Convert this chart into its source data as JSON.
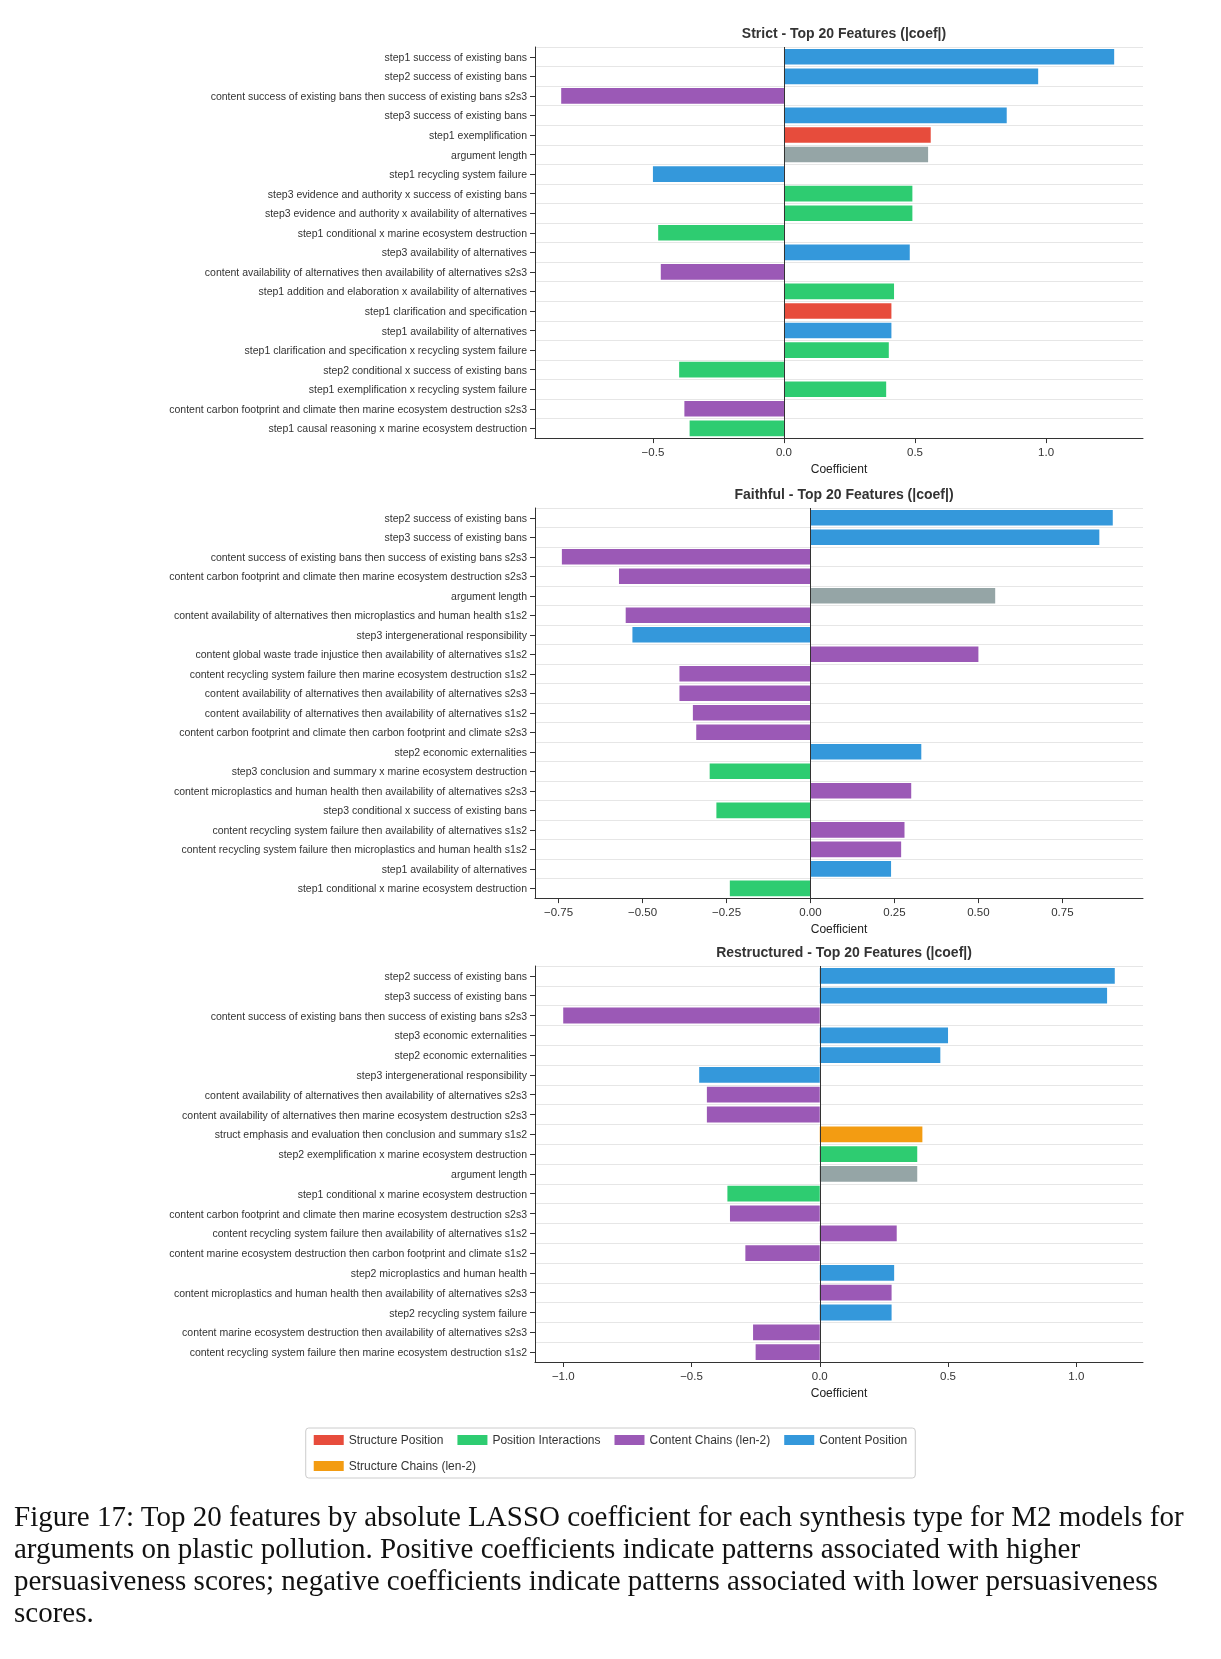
{
  "chart_data": [
    {
      "type": "bar",
      "orientation": "horizontal",
      "title": "Strict - Top 20 Features (|coef|)",
      "xlabel": "Coefficient",
      "categories": [
        "step1 success of existing bans",
        "step2 success of existing bans",
        "content success of existing bans then success of existing bans s2s3",
        "step3 success of existing bans",
        "step1 exemplification",
        "argument length",
        "step1 recycling system failure",
        "step3 evidence and authority x success of existing bans",
        "step3 evidence and authority x availability of alternatives",
        "step1 conditional x marine ecosystem destruction",
        "step3 availability of alternatives",
        "content availability of alternatives then availability of alternatives s2s3",
        "step1 addition and elaboration x availability of alternatives",
        "step1 clarification and specification",
        "step1 availability of alternatives",
        "step1 clarification and specification x recycling system failure",
        "step2 conditional x success of existing bans",
        "step1 exemplification x recycling system failure",
        "content carbon footprint and climate then marine ecosystem destruction s2s3",
        "step1 causal reasoning x marine ecosystem destruction"
      ],
      "series": [
        {
          "color": "#e74c3c",
          "values": [
            null,
            null,
            null,
            null,
            0.56,
            null,
            null,
            null,
            null,
            null,
            null,
            null,
            null,
            0.41,
            null,
            null,
            null,
            null,
            null,
            null
          ]
        },
        {
          "color": "#3498db",
          "values": [
            1.26,
            0.97,
            null,
            0.85,
            null,
            null,
            -0.5,
            null,
            null,
            null,
            0.48,
            null,
            null,
            null,
            0.41,
            null,
            null,
            null,
            null,
            null
          ]
        },
        {
          "color": "#2ecc71",
          "values": [
            null,
            null,
            null,
            null,
            null,
            null,
            null,
            0.49,
            0.49,
            -0.48,
            null,
            null,
            0.42,
            null,
            null,
            0.4,
            -0.4,
            0.39,
            null,
            -0.36
          ]
        },
        {
          "color": "#9b59b6",
          "values": [
            null,
            null,
            -0.85,
            null,
            null,
            null,
            null,
            null,
            null,
            null,
            null,
            -0.47,
            null,
            null,
            null,
            null,
            null,
            null,
            -0.38,
            null
          ]
        },
        {
          "color": "#95a5a6",
          "values": [
            null,
            null,
            null,
            null,
            null,
            0.55,
            null,
            null,
            null,
            null,
            null,
            null,
            null,
            null,
            null,
            null,
            null,
            null,
            null,
            null
          ]
        }
      ],
      "xlim": [
        -0.95,
        1.37
      ],
      "xticks": [
        {
          "value": -0.5,
          "label": "−0.5"
        },
        {
          "value": 0,
          "label": "0.0"
        },
        0.5,
        {
          "value": 1,
          "label": "1.0"
        }
      ],
      "grid": "y",
      "legend": false,
      "ref_lines": [
        {
          "axis": "x",
          "value": 0,
          "color": "#333333"
        }
      ]
    },
    {
      "type": "bar",
      "orientation": "horizontal",
      "title": "Faithful - Top 20 Features (|coef|)",
      "xlabel": "Coefficient",
      "categories": [
        "step2 success of existing bans",
        "step3 success of existing bans",
        "content success of existing bans then success of existing bans s2s3",
        "content carbon footprint and climate then marine ecosystem destruction s2s3",
        "argument length",
        "content availability of alternatives then microplastics and human health s1s2",
        "step3 intergenerational responsibility",
        "content global waste trade injustice then availability of alternatives s1s2",
        "content recycling system failure then marine ecosystem destruction s1s2",
        "content availability of alternatives then availability of alternatives s2s3",
        "content availability of alternatives then availability of alternatives s1s2",
        "content carbon footprint and climate then carbon footprint and climate s2s3",
        "step2 economic externalities",
        "step3 conclusion and summary x marine ecosystem destruction",
        "content microplastics and human health then availability of alternatives s2s3",
        "step3 conditional x success of existing bans",
        "content recycling system failure then availability of alternatives s1s2",
        "content recycling system failure then microplastics and human health s1s2",
        "step1 availability of alternatives",
        "step1 conditional x marine ecosystem destruction"
      ],
      "series": [
        {
          "color": "#3498db",
          "values": [
            0.9,
            0.86,
            null,
            null,
            null,
            null,
            -0.53,
            null,
            null,
            null,
            null,
            null,
            0.33,
            null,
            null,
            null,
            null,
            null,
            0.24,
            null
          ]
        },
        {
          "color": "#2ecc71",
          "values": [
            null,
            null,
            null,
            null,
            null,
            null,
            null,
            null,
            null,
            null,
            null,
            null,
            null,
            -0.3,
            null,
            -0.28,
            null,
            null,
            null,
            -0.24
          ]
        },
        {
          "color": "#9b59b6",
          "values": [
            null,
            null,
            -0.74,
            -0.57,
            null,
            -0.55,
            null,
            0.5,
            -0.39,
            -0.39,
            -0.35,
            -0.34,
            null,
            null,
            0.3,
            null,
            0.28,
            0.27,
            null,
            null
          ]
        },
        {
          "color": "#95a5a6",
          "values": [
            null,
            null,
            null,
            null,
            0.55,
            null,
            null,
            null,
            null,
            null,
            null,
            null,
            null,
            null,
            null,
            null,
            null,
            null,
            null,
            null
          ]
        }
      ],
      "xlim": [
        -0.82,
        0.99
      ],
      "xticks": [
        {
          "value": -0.75,
          "label": "−0.75"
        },
        {
          "value": -0.5,
          "label": "−0.50"
        },
        {
          "value": -0.25,
          "label": "−0.25"
        },
        {
          "value": 0,
          "label": "0.00"
        },
        0.25,
        {
          "value": 0.5,
          "label": "0.50"
        },
        0.75
      ],
      "grid": "y",
      "legend": false,
      "ref_lines": [
        {
          "axis": "x",
          "value": 0,
          "color": "#333333"
        }
      ]
    },
    {
      "type": "bar",
      "orientation": "horizontal",
      "title": "Restructured - Top 20 Features (|coef|)",
      "xlabel": "Coefficient",
      "categories": [
        "step2 success of existing bans",
        "step3 success of existing bans",
        "content success of existing bans then success of existing bans s2s3",
        "step3 economic externalities",
        "step2 economic externalities",
        "step3 intergenerational responsibility",
        "content availability of alternatives then availability of alternatives s2s3",
        "content availability of alternatives then marine ecosystem destruction s2s3",
        "struct emphasis and evaluation then conclusion and summary s1s2",
        "step2 exemplification x marine ecosystem destruction",
        "argument length",
        "step1 conditional x marine ecosystem destruction",
        "content carbon footprint and climate then marine ecosystem destruction s2s3",
        "content recycling system failure then availability of alternatives s1s2",
        "content marine ecosystem destruction then carbon footprint and climate s1s2",
        "step2 microplastics and human health",
        "content microplastics and human health then availability of alternatives s2s3",
        "step2 recycling system failure",
        "content marine ecosystem destruction then availability of alternatives s2s3",
        "content recycling system failure then marine ecosystem destruction s1s2"
      ],
      "series": [
        {
          "name": "Structure Position",
          "color": "#e74c3c",
          "values": [
            null,
            null,
            null,
            null,
            null,
            null,
            null,
            null,
            null,
            null,
            null,
            null,
            null,
            null,
            null,
            null,
            null,
            null,
            null,
            null
          ]
        },
        {
          "name": "Content Position",
          "color": "#3498db",
          "values": [
            1.15,
            1.12,
            null,
            0.5,
            0.47,
            -0.47,
            null,
            null,
            null,
            null,
            null,
            null,
            null,
            null,
            null,
            0.29,
            null,
            0.28,
            null,
            null
          ]
        },
        {
          "name": "Position Interactions",
          "color": "#2ecc71",
          "values": [
            null,
            null,
            null,
            null,
            null,
            null,
            null,
            null,
            null,
            0.38,
            null,
            -0.36,
            null,
            null,
            null,
            null,
            null,
            null,
            null,
            null
          ]
        },
        {
          "name": "Structure Chains (len-2)",
          "color": "#f39c12",
          "values": [
            null,
            null,
            null,
            null,
            null,
            null,
            null,
            null,
            0.4,
            null,
            null,
            null,
            null,
            null,
            null,
            null,
            null,
            null,
            null,
            null
          ]
        },
        {
          "name": "Content Chains (len-2)",
          "color": "#9b59b6",
          "values": [
            null,
            null,
            -1.0,
            null,
            null,
            null,
            -0.44,
            -0.44,
            null,
            null,
            null,
            null,
            -0.35,
            0.3,
            -0.29,
            null,
            0.28,
            null,
            -0.26,
            -0.25
          ]
        },
        {
          "color": "#95a5a6",
          "values": [
            null,
            null,
            null,
            null,
            null,
            null,
            null,
            null,
            null,
            null,
            0.38,
            null,
            null,
            null,
            null,
            null,
            null,
            null,
            null,
            null
          ]
        }
      ],
      "xlim": [
        -1.11,
        1.26
      ],
      "xticks": [
        {
          "value": -1,
          "label": "−1.0"
        },
        {
          "value": -0.5,
          "label": "−0.5"
        },
        {
          "value": 0,
          "label": "0.0"
        },
        0.5,
        {
          "value": 1,
          "label": "1.0"
        }
      ],
      "grid": "y",
      "legend": "bottom",
      "ref_lines": [
        {
          "axis": "x",
          "value": 0,
          "color": "#333333"
        }
      ],
      "annotations": [
        "Figure 17: Top 20 features by absolute LASSO coefficient for each synthesis type for M2 models for arguments on plastic pollution. Positive coefficients indicate patterns associated with higher persuasiveness scores; negative coefficients indicate patterns associated with lower persuasiveness scores."
      ]
    }
  ]
}
